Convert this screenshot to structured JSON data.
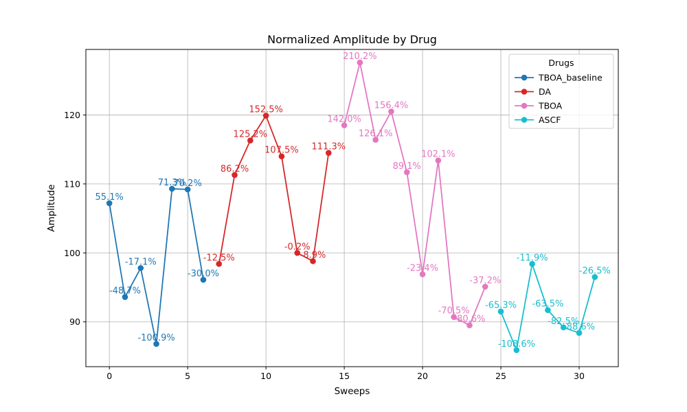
{
  "chart_data": {
    "type": "line",
    "title": "Normalized Amplitude by Drug",
    "xlabel": "Sweeps",
    "ylabel": "Amplitude",
    "xlim": [
      -1.5,
      32.5
    ],
    "ylim": [
      83.5,
      129.5
    ],
    "xticks": [
      0,
      5,
      10,
      15,
      20,
      25,
      30
    ],
    "yticks": [
      90,
      100,
      110,
      120
    ],
    "grid": true,
    "legend": {
      "title": "Drugs",
      "placement": "top-right"
    },
    "series": [
      {
        "name": "TBOA_baseline",
        "color": "#1f77b4",
        "x": [
          0,
          1,
          2,
          3,
          4,
          5,
          6
        ],
        "y": [
          107.2,
          93.6,
          97.8,
          86.8,
          109.3,
          109.2,
          96.1
        ],
        "labels": [
          "55.1%",
          "-48.7%",
          "-17.1%",
          "-100.9%",
          "71.3%",
          "70.2%",
          "-30.0%"
        ]
      },
      {
        "name": "DA",
        "color": "#d62728",
        "x": [
          7,
          8,
          9,
          10,
          11,
          12,
          13,
          14
        ],
        "y": [
          98.4,
          111.3,
          116.3,
          119.9,
          114.0,
          100.0,
          98.8,
          114.5
        ],
        "labels": [
          "-12.5%",
          "86.2%",
          "125.2%",
          "152.5%",
          "107.5%",
          "-0.2%",
          "-8.9%",
          "111.3%"
        ]
      },
      {
        "name": "TBOA",
        "color": "#e377c2",
        "x": [
          15,
          16,
          17,
          18,
          19,
          20,
          21,
          22,
          23,
          24
        ],
        "y": [
          118.5,
          127.6,
          116.4,
          120.5,
          111.7,
          96.9,
          113.4,
          90.7,
          89.5,
          95.1
        ],
        "labels": [
          "142.0%",
          "210.2%",
          "126.1%",
          "156.4%",
          "89.1%",
          "-23.4%",
          "102.1%",
          "-70.5%",
          "-80.6%",
          "-37.2%"
        ]
      },
      {
        "name": "ASCF",
        "color": "#17becf",
        "x": [
          25,
          26,
          27,
          28,
          29,
          30,
          31
        ],
        "y": [
          91.5,
          85.9,
          98.4,
          91.7,
          89.2,
          88.4,
          96.5
        ],
        "labels": [
          "-65.3%",
          "-108.6%",
          "-11.9%",
          "-63.5%",
          "-82.5%",
          "-88.6%",
          "-26.5%"
        ]
      }
    ]
  }
}
